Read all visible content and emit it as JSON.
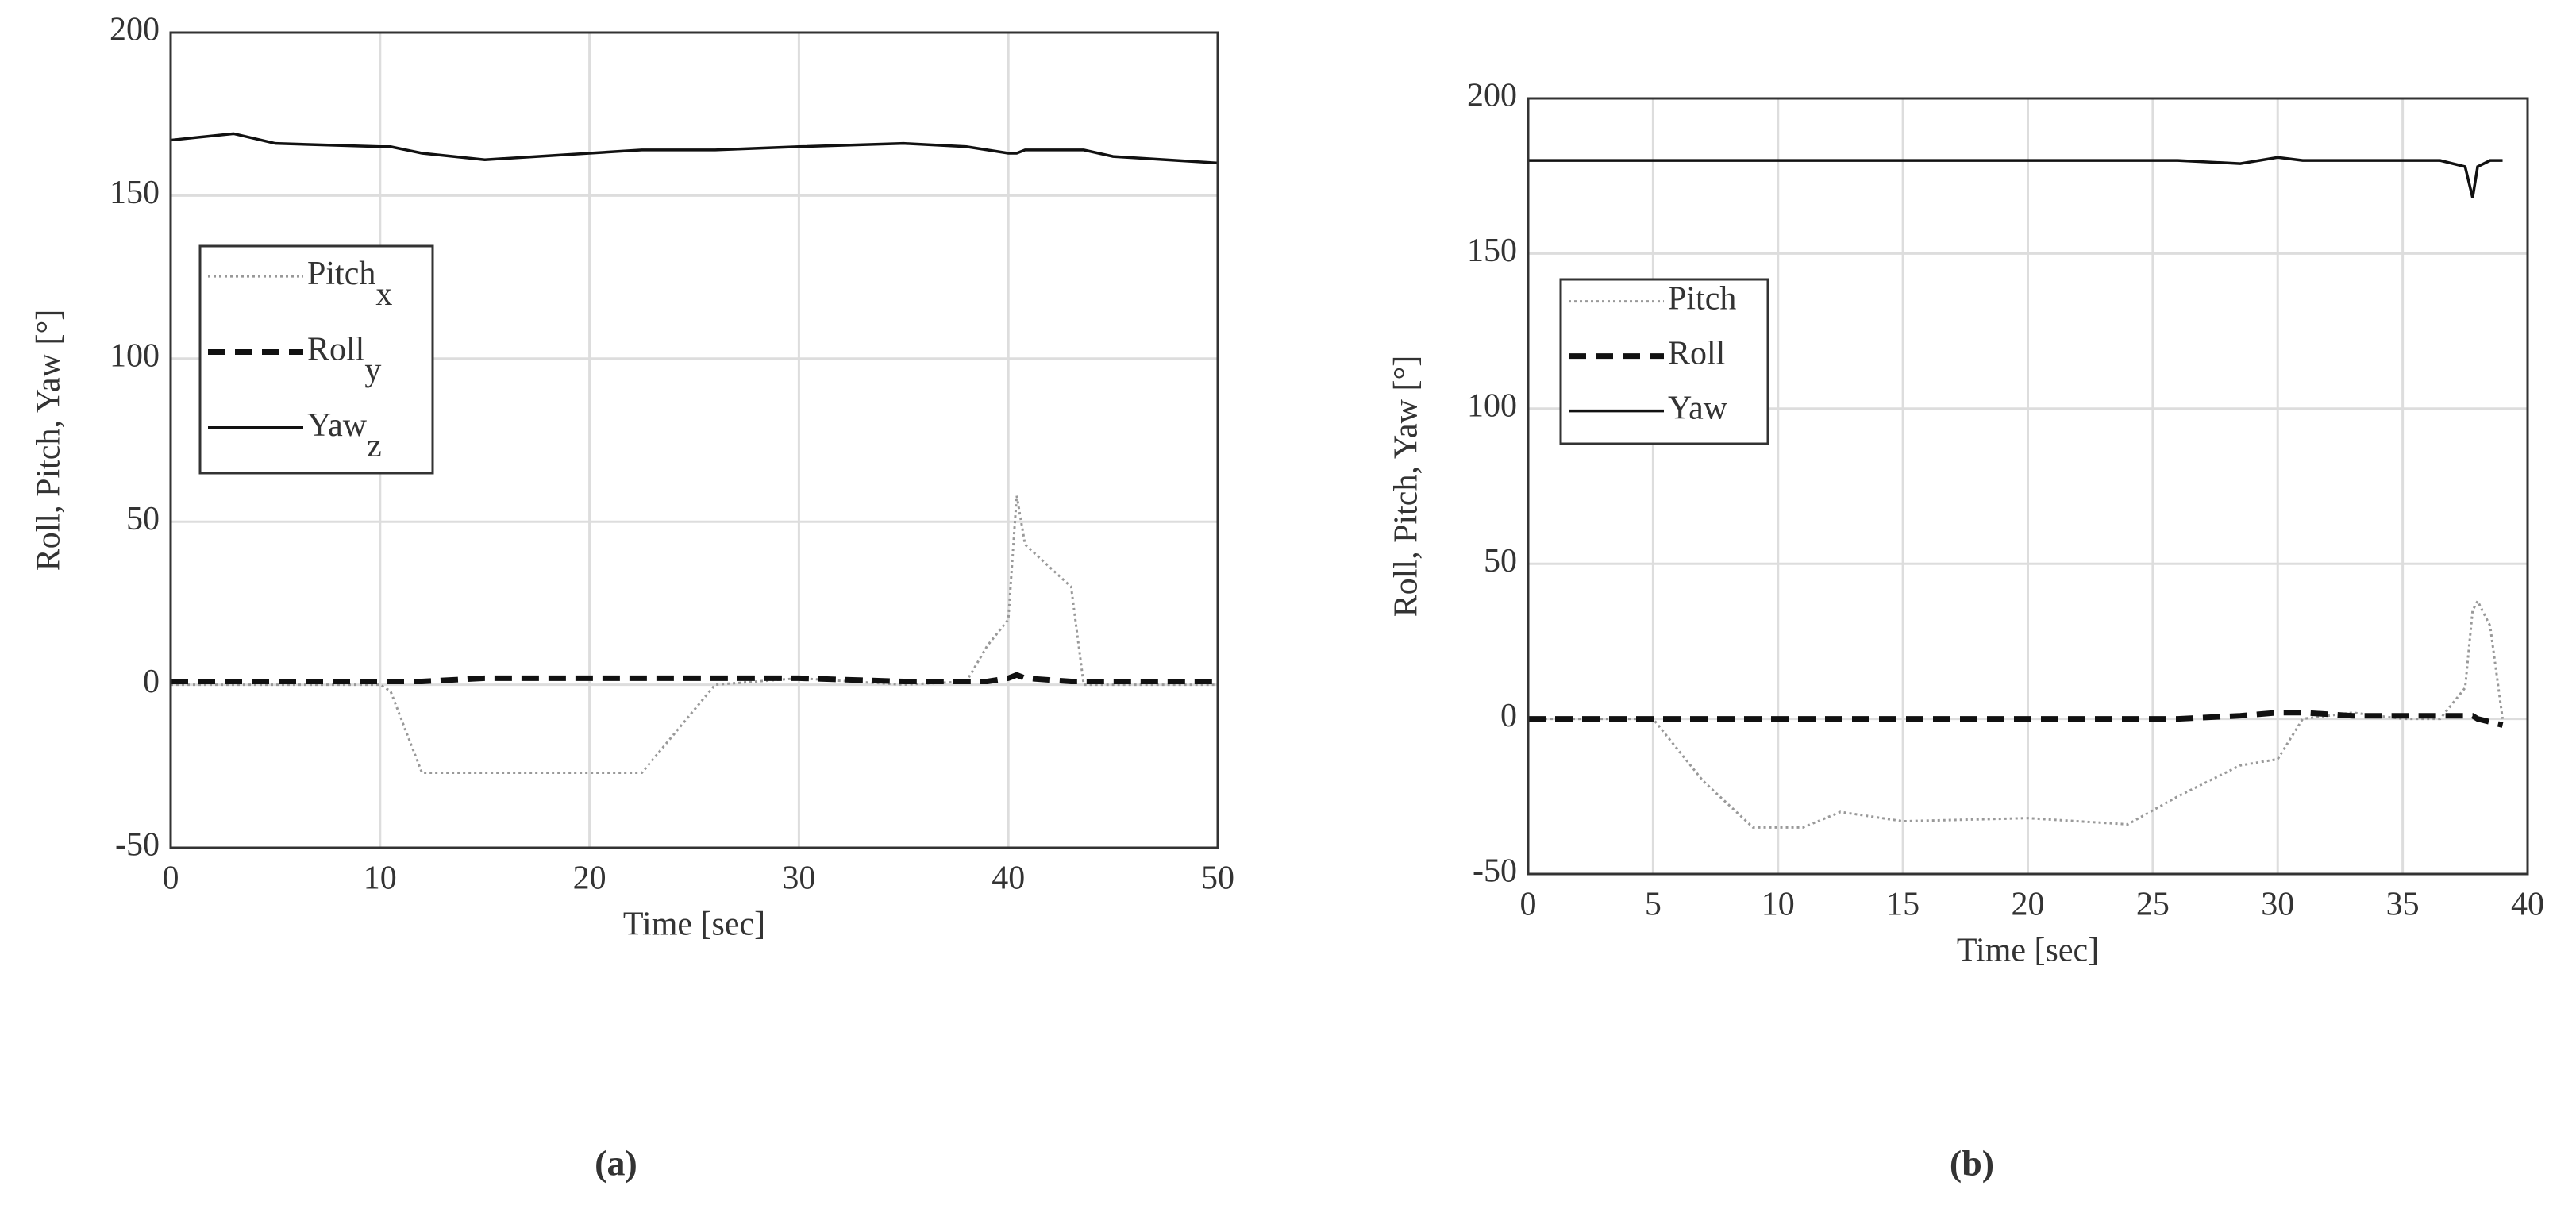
{
  "chart_data": [
    {
      "type": "line",
      "caption": "(a)",
      "xlabel": "Time [sec]",
      "ylabel": "Roll, Pitch, Yaw [°]",
      "xlim": [
        0,
        50
      ],
      "xticks": [
        0,
        10,
        20,
        30,
        40,
        50
      ],
      "ylim": [
        -50,
        200
      ],
      "yticks": [
        -50,
        0,
        50,
        100,
        150,
        200
      ],
      "grid": true,
      "legend": "upper left",
      "x": [
        0,
        3,
        5,
        10,
        10.5,
        12,
        15,
        20,
        22.5,
        26,
        30,
        35,
        38,
        39,
        40,
        40.4,
        40.8,
        43,
        43.6,
        45,
        50
      ],
      "series": [
        {
          "name": "Pitch",
          "legend_subscript": "x",
          "color": "#999999",
          "linestyle": "dotted",
          "values": [
            0,
            0,
            0,
            0,
            -2,
            -27,
            -27,
            -27,
            -27,
            0,
            2,
            0,
            1,
            12,
            20,
            58,
            43,
            30,
            0,
            0,
            0
          ]
        },
        {
          "name": "Roll",
          "legend_subscript": "y",
          "color": "#111111",
          "linestyle": "dashed",
          "values": [
            1,
            1,
            1,
            1,
            1,
            1,
            2,
            2,
            2,
            2,
            2,
            1,
            1,
            1,
            2,
            3,
            2,
            1,
            1,
            1,
            1
          ]
        },
        {
          "name": "Yaw",
          "legend_subscript": "z",
          "color": "#111111",
          "linestyle": "solid",
          "values": [
            167,
            169,
            166,
            165,
            165,
            163,
            161,
            163,
            164,
            164,
            165,
            166,
            165,
            164,
            163,
            163,
            164,
            164,
            164,
            162,
            160
          ]
        }
      ]
    },
    {
      "type": "line",
      "caption": "(b)",
      "xlabel": "Time [sec]",
      "ylabel": "Roll, Pitch, Yaw [°]",
      "xlim": [
        0,
        40
      ],
      "xticks": [
        0,
        5,
        10,
        15,
        20,
        25,
        30,
        35,
        40
      ],
      "ylim": [
        -50,
        200
      ],
      "yticks": [
        -50,
        0,
        50,
        100,
        150,
        200
      ],
      "grid": true,
      "legend": "upper left",
      "x": [
        0,
        5,
        7,
        9,
        11,
        12.5,
        15,
        20,
        24,
        26,
        28.5,
        30,
        31,
        33,
        35,
        36.5,
        37.5,
        37.8,
        38,
        38.5,
        39
      ],
      "series": [
        {
          "name": "Pitch",
          "color": "#999999",
          "linestyle": "dotted",
          "values": [
            0,
            0,
            -20,
            -35,
            -35,
            -30,
            -33,
            -32,
            -34,
            -25,
            -15,
            -13,
            0,
            2,
            0,
            0,
            10,
            35,
            38,
            30,
            0
          ]
        },
        {
          "name": "Roll",
          "color": "#111111",
          "linestyle": "dashed",
          "values": [
            0,
            0,
            0,
            0,
            0,
            0,
            0,
            0,
            0,
            0,
            1,
            2,
            2,
            1,
            1,
            1,
            1,
            1,
            0,
            -1,
            -2
          ]
        },
        {
          "name": "Yaw",
          "color": "#111111",
          "linestyle": "solid",
          "values": [
            180,
            180,
            180,
            180,
            180,
            180,
            180,
            180,
            180,
            180,
            179,
            181,
            180,
            180,
            180,
            180,
            178,
            168,
            178,
            180,
            180
          ]
        }
      ]
    }
  ]
}
